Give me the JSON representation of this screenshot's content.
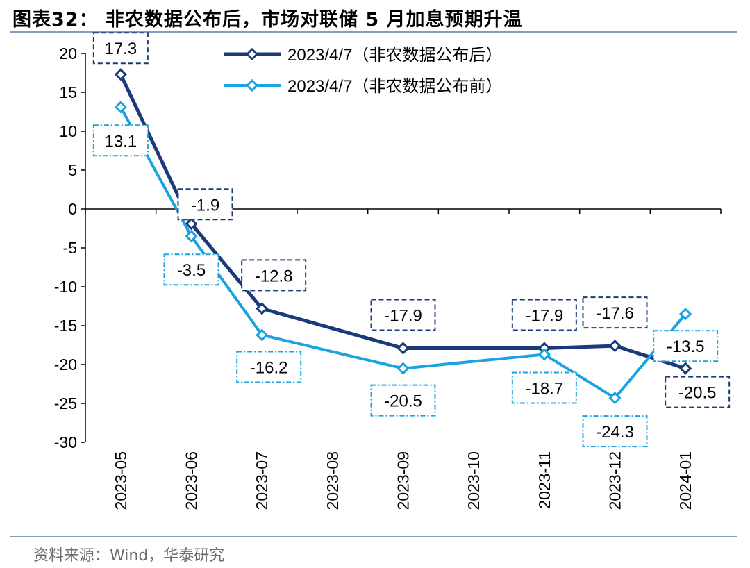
{
  "header": {
    "title": "图表32：  非农数据公布后，市场对联储 5 月加息预期升温"
  },
  "footer": {
    "source": "资料来源：Wind，华泰研究"
  },
  "colors": {
    "after": "#1b3a7a",
    "before": "#1aa3e0",
    "rule": "#7f9fbf"
  },
  "chart_data": {
    "type": "line",
    "title": "",
    "xlabel": "",
    "ylabel": "",
    "ylim": [
      -30,
      20
    ],
    "yticks": [
      20,
      15,
      10,
      5,
      0,
      -5,
      -10,
      -15,
      -20,
      -25,
      -30
    ],
    "categories": [
      "2023-05",
      "2023-06",
      "2023-07",
      "2023-08",
      "2023-09",
      "2023-10",
      "2023-11",
      "2023-12",
      "2024-01"
    ],
    "legend_position": "top",
    "grid": false,
    "series": [
      {
        "name": "2023/4/7（非农数据公布后）",
        "color": "#1b3a7a",
        "points": [
          {
            "x": "2023-05",
            "y": 17.3,
            "label": "17.3"
          },
          {
            "x": "2023-06",
            "y": -1.9,
            "label": "-1.9"
          },
          {
            "x": "2023-07",
            "y": -12.8,
            "label": "-12.8"
          },
          {
            "x": "2023-09",
            "y": -17.9,
            "label": "-17.9"
          },
          {
            "x": "2023-11",
            "y": -17.9,
            "label": "-17.9"
          },
          {
            "x": "2023-12",
            "y": -17.6,
            "label": "-17.6"
          },
          {
            "x": "2024-01",
            "y": -20.5,
            "label": "-20.5"
          }
        ]
      },
      {
        "name": "2023/4/7（非农数据公布前）",
        "color": "#1aa3e0",
        "points": [
          {
            "x": "2023-05",
            "y": 13.1,
            "label": "13.1"
          },
          {
            "x": "2023-06",
            "y": -3.5,
            "label": "-3.5"
          },
          {
            "x": "2023-07",
            "y": -16.2,
            "label": "-16.2"
          },
          {
            "x": "2023-09",
            "y": -20.5,
            "label": "-20.5"
          },
          {
            "x": "2023-11",
            "y": -18.7,
            "label": "-18.7"
          },
          {
            "x": "2023-12",
            "y": -24.3,
            "label": "-24.3"
          },
          {
            "x": "2024-01",
            "y": -13.5,
            "label": "-13.5"
          }
        ]
      }
    ]
  }
}
